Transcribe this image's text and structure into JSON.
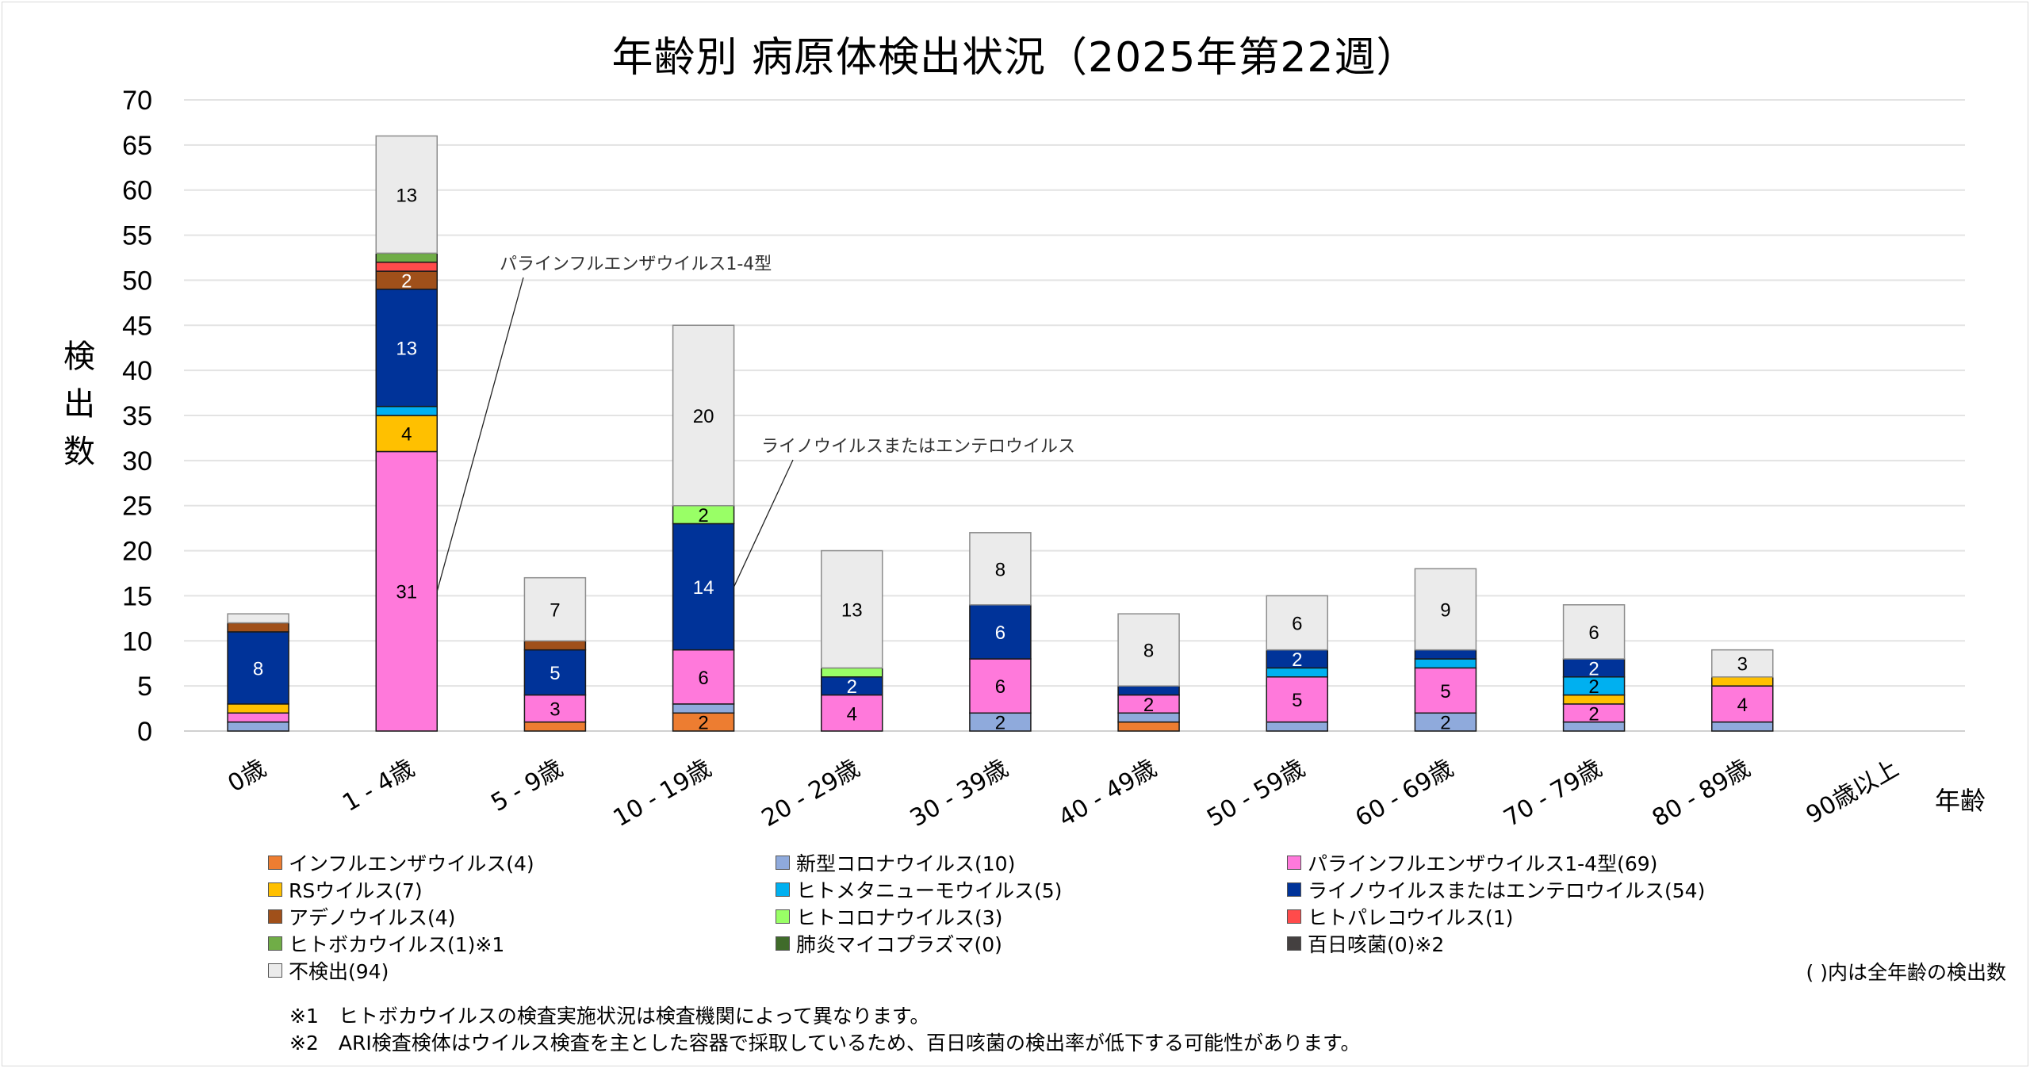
{
  "chart_data": {
    "type": "bar",
    "stacked": true,
    "title": "年齢別 病原体検出状況（2025年第22週）",
    "xlabel": "年齢",
    "ylabel": "検出数",
    "ylim": [
      0,
      70
    ],
    "yticks": [
      0,
      5,
      10,
      15,
      20,
      25,
      30,
      35,
      40,
      45,
      50,
      55,
      60,
      65,
      70
    ],
    "grid": true,
    "categories": [
      "0歳",
      "1 - 4歳",
      "5 - 9歳",
      "10 - 19歳",
      "20 - 29歳",
      "30 - 39歳",
      "40 - 49歳",
      "50 - 59歳",
      "60 - 69歳",
      "70 - 79歳",
      "80 - 89歳",
      "90歳以上"
    ],
    "series": [
      {
        "name": "インフルエンザウイルス",
        "total": 4,
        "color": "#ED7D31",
        "label_color": "#000000",
        "values": [
          0,
          0,
          1,
          2,
          0,
          0,
          1,
          0,
          0,
          0,
          0,
          0
        ]
      },
      {
        "name": "新型コロナウイルス",
        "total": 10,
        "color": "#8FAADC",
        "label_color": "#000000",
        "values": [
          1,
          0,
          0,
          1,
          0,
          2,
          1,
          1,
          2,
          1,
          1,
          0
        ]
      },
      {
        "name": "パラインフルエンザウイルス1-4型",
        "total": 69,
        "color": "#FF79DB",
        "label_color": "#000000",
        "values": [
          1,
          31,
          3,
          6,
          4,
          6,
          2,
          5,
          5,
          2,
          4,
          0
        ]
      },
      {
        "name": "RSウイルス",
        "total": 7,
        "color": "#FFC000",
        "label_color": "#000000",
        "values": [
          1,
          4,
          0,
          0,
          0,
          0,
          0,
          0,
          0,
          1,
          1,
          0
        ]
      },
      {
        "name": "ヒトメタニューモウイルス",
        "total": 5,
        "color": "#00B0F0",
        "label_color": "#000000",
        "values": [
          0,
          1,
          0,
          0,
          0,
          0,
          0,
          1,
          1,
          2,
          0,
          0
        ]
      },
      {
        "name": "ライノウイルスまたはエンテロウイルス",
        "total": 54,
        "color": "#003399",
        "label_color": "#FFFFFF",
        "values": [
          8,
          13,
          5,
          14,
          2,
          6,
          1,
          2,
          1,
          2,
          0,
          0
        ]
      },
      {
        "name": "アデノウイルス",
        "total": 4,
        "color": "#A0501A",
        "label_color": "#FFFFFF",
        "values": [
          1,
          2,
          1,
          0,
          0,
          0,
          0,
          0,
          0,
          0,
          0,
          0
        ]
      },
      {
        "name": "ヒトコロナウイルス",
        "total": 3,
        "color": "#99FF66",
        "label_color": "#000000",
        "values": [
          0,
          0,
          0,
          2,
          1,
          0,
          0,
          0,
          0,
          0,
          0,
          0
        ]
      },
      {
        "name": "ヒトパレコウイルス",
        "total": 1,
        "color": "#FF4B4B",
        "label_color": "#000000",
        "values": [
          0,
          1,
          0,
          0,
          0,
          0,
          0,
          0,
          0,
          0,
          0,
          0
        ]
      },
      {
        "name": "ヒトボカウイルス",
        "total": 1,
        "color": "#70AD47",
        "label_color": "#000000",
        "values": [
          0,
          1,
          0,
          0,
          0,
          0,
          0,
          0,
          0,
          0,
          0,
          0
        ]
      },
      {
        "name": "肺炎マイコプラズマ",
        "total": 0,
        "color": "#3F6B2A",
        "label_color": "#FFFFFF",
        "values": [
          0,
          0,
          0,
          0,
          0,
          0,
          0,
          0,
          0,
          0,
          0,
          0
        ]
      },
      {
        "name": "百日咳菌",
        "total": 0,
        "color": "#444040",
        "label_color": "#FFFFFF",
        "values": [
          0,
          0,
          0,
          0,
          0,
          0,
          0,
          0,
          0,
          0,
          0,
          0
        ]
      },
      {
        "name": "不検出",
        "total": 94,
        "color": "#EBEBEB",
        "label_color": "#000000",
        "values": [
          1,
          13,
          7,
          20,
          13,
          8,
          8,
          6,
          9,
          6,
          3,
          0
        ]
      }
    ],
    "annotations": [
      {
        "text": "パラインフルエンザウイルス1-4型",
        "category": "1 - 4歳",
        "series": "パラインフルエンザウイルス1-4型"
      },
      {
        "text": "ライノウイルスまたはエンテロウイルス",
        "category": "10 - 19歳",
        "series": "ライノウイルスまたはエンテロウイルス"
      }
    ],
    "min_label_value": 2,
    "label_value_exceptions": []
  },
  "legend": {
    "items": [
      {
        "label": "インフルエンザウイルス(4)",
        "color": "#ED7D31"
      },
      {
        "label": "新型コロナウイルス(10)",
        "color": "#8FAADC"
      },
      {
        "label": "パラインフルエンザウイルス1-4型(69)",
        "color": "#FF79DB"
      },
      {
        "label": "RSウイルス(7)",
        "color": "#FFC000"
      },
      {
        "label": "ヒトメタニューモウイルス(5)",
        "color": "#00B0F0"
      },
      {
        "label": "ライノウイルスまたはエンテロウイルス(54)",
        "color": "#003399"
      },
      {
        "label": "アデノウイルス(4)",
        "color": "#A0501A"
      },
      {
        "label": "ヒトコロナウイルス(3)",
        "color": "#99FF66"
      },
      {
        "label": "ヒトパレコウイルス(1)",
        "color": "#FF4B4B"
      },
      {
        "label": "ヒトボカウイルス(1)※1",
        "color": "#70AD47"
      },
      {
        "label": "肺炎マイコプラズマ(0)",
        "color": "#3F6B2A"
      },
      {
        "label": "百日咳菌(0)※2",
        "color": "#444040"
      },
      {
        "label": "不検出(94)",
        "color": "#EBEBEB"
      }
    ],
    "note": "( )内は全年齢の検出数"
  },
  "footnotes": [
    "※1　ヒトボカウイルスの検査実施状況は検査機関によって異なります。",
    "※2　ARI検査検体はウイルス検査を主とした容器で採取しているため、百日咳菌の検出率が低下する可能性があります。"
  ]
}
